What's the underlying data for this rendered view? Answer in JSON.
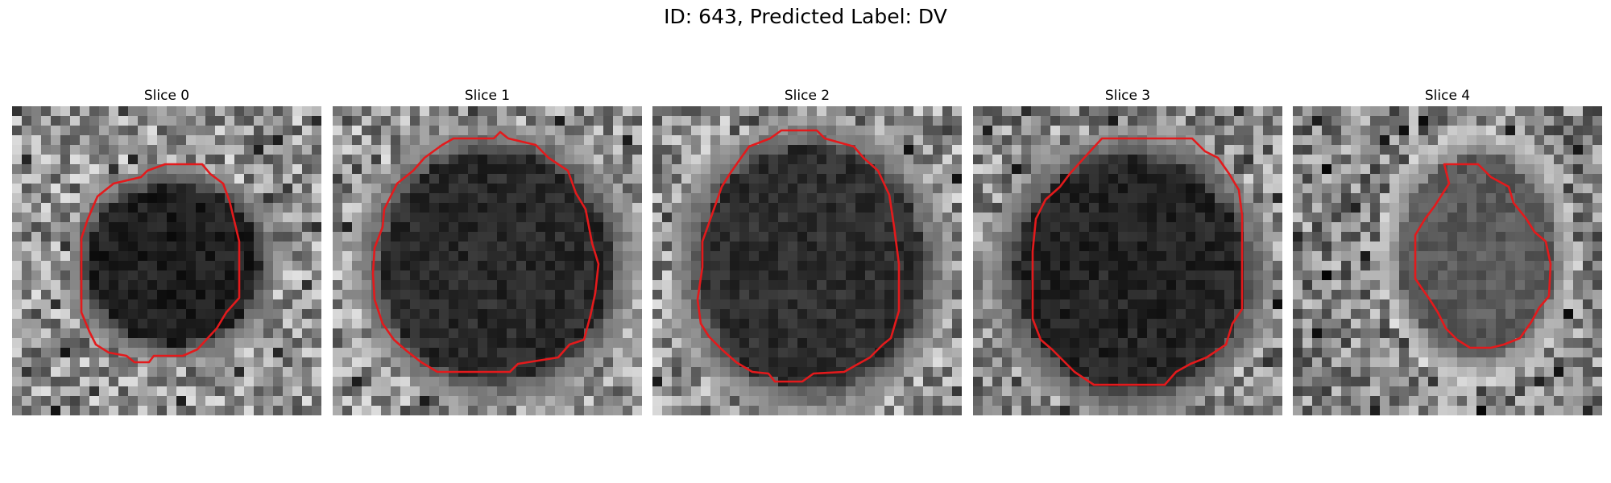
{
  "figure": {
    "title": "ID: 643, Predicted Label: DV"
  },
  "panels": [
    {
      "title": "Slice 0",
      "contour_color": "#e31a1c"
    },
    {
      "title": "Slice 1",
      "contour_color": "#e31a1c"
    },
    {
      "title": "Slice 2",
      "contour_color": "#e31a1c"
    },
    {
      "title": "Slice 3",
      "contour_color": "#e31a1c"
    },
    {
      "title": "Slice 4",
      "contour_color": "#e31a1c"
    }
  ],
  "style": {
    "colormap": "grayscale",
    "contour": "red outline"
  }
}
